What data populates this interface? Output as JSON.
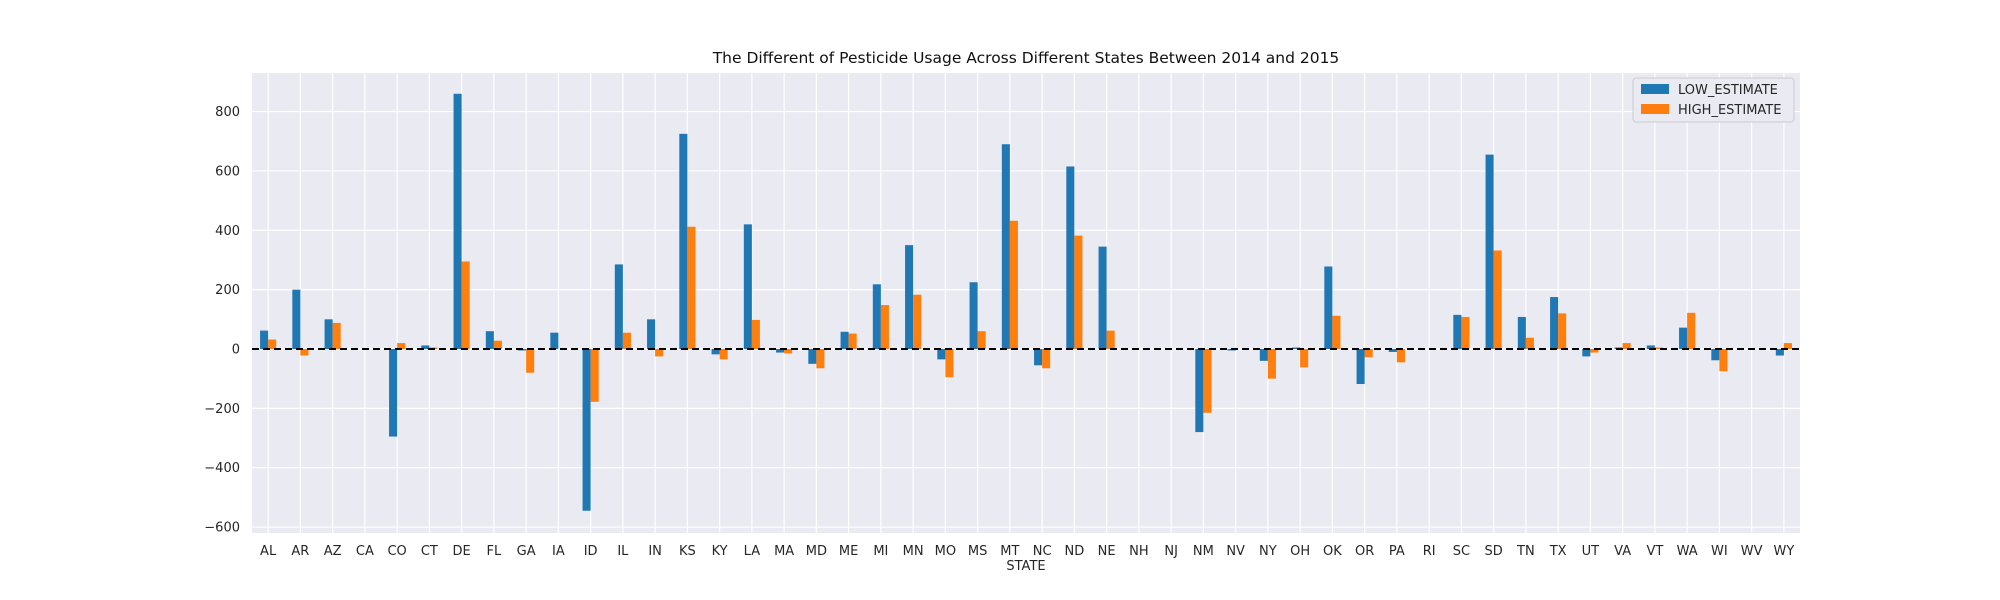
{
  "chart_data": {
    "type": "bar",
    "title": "The Different of Pesticide Usage Across Different States Between 2014 and 2015",
    "xlabel": "STATE",
    "ylabel": "",
    "ylim": [
      -620,
      930
    ],
    "yticks": [
      -600,
      -400,
      -200,
      0,
      200,
      400,
      600,
      800
    ],
    "grid": true,
    "legend_position": "top-right",
    "zero_line": {
      "style": "dashed",
      "color": "#000000"
    },
    "categories": [
      "AL",
      "AR",
      "AZ",
      "CA",
      "CO",
      "CT",
      "DE",
      "FL",
      "GA",
      "IA",
      "ID",
      "IL",
      "IN",
      "KS",
      "KY",
      "LA",
      "MA",
      "MD",
      "ME",
      "MI",
      "MN",
      "MO",
      "MS",
      "MT",
      "NC",
      "ND",
      "NE",
      "NH",
      "NJ",
      "NM",
      "NV",
      "NY",
      "OH",
      "OK",
      "OR",
      "PA",
      "RI",
      "SC",
      "SD",
      "TN",
      "TX",
      "UT",
      "VA",
      "VT",
      "WA",
      "WI",
      "WV",
      "WY"
    ],
    "series": [
      {
        "name": "LOW_ESTIMATE",
        "color": "#1f77b4",
        "values": [
          62,
          200,
          100,
          0,
          -295,
          12,
          860,
          60,
          -5,
          55,
          -545,
          285,
          100,
          725,
          -18,
          420,
          -12,
          -50,
          58,
          218,
          350,
          -35,
          225,
          690,
          -55,
          615,
          345,
          0,
          0,
          -280,
          -5,
          -40,
          5,
          278,
          -118,
          -10,
          0,
          115,
          655,
          108,
          175,
          -25,
          5,
          12,
          72,
          -38,
          0,
          -22
        ]
      },
      {
        "name": "HIGH_ESTIMATE",
        "color": "#ff7f0e",
        "values": [
          32,
          -22,
          88,
          0,
          20,
          5,
          295,
          28,
          -80,
          0,
          -178,
          55,
          -25,
          412,
          -35,
          98,
          -15,
          -65,
          52,
          148,
          183,
          -95,
          60,
          432,
          -65,
          382,
          62,
          0,
          0,
          -215,
          0,
          -100,
          -62,
          112,
          -28,
          -45,
          0,
          108,
          332,
          38,
          120,
          -12,
          20,
          5,
          122,
          -75,
          0,
          20
        ]
      }
    ]
  }
}
